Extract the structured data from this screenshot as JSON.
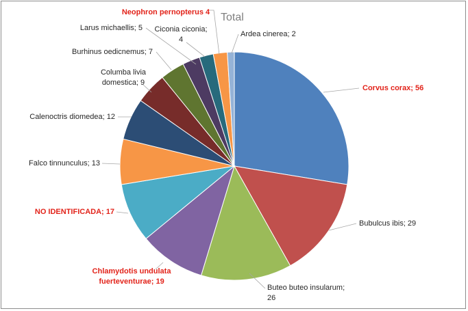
{
  "chart_data": {
    "type": "pie",
    "title": "Total",
    "slices": [
      {
        "label": "Corvus corax; 56",
        "category": "Corvus corax",
        "value": 56,
        "color": "#4f81bd",
        "highlight": true
      },
      {
        "label": "Bubulcus ibis; 29",
        "category": "Bubulcus ibis",
        "value": 29,
        "color": "#c0504d",
        "highlight": false
      },
      {
        "label": "Buteo buteo insularum; 26",
        "category": "Buteo buteo insularum",
        "value": 26,
        "color": "#9bbb59",
        "highlight": false
      },
      {
        "label": "Chlamydotis undulata fuerteventurae; 19",
        "category": "Chlamydotis undulata fuerteventurae",
        "value": 19,
        "color": "#8064a2",
        "highlight": true
      },
      {
        "label": "NO IDENTIFICADA; 17",
        "category": "NO IDENTIFICADA",
        "value": 17,
        "color": "#4bacc6",
        "highlight": true
      },
      {
        "label": "Falco tinnunculus; 13",
        "category": "Falco tinnunculus",
        "value": 13,
        "color": "#f79646",
        "highlight": false
      },
      {
        "label": "Calenoctris diomedea; 12",
        "category": "Calenoctris diomedea",
        "value": 12,
        "color": "#2c4d75",
        "highlight": false
      },
      {
        "label": "Columba livia domestica; 9",
        "category": "Columba livia domestica",
        "value": 9,
        "color": "#772c2a",
        "highlight": false
      },
      {
        "label": "Burhinus oedicnemus; 7",
        "category": "Burhinus oedicnemus",
        "value": 7,
        "color": "#5f7530",
        "highlight": false
      },
      {
        "label": "Larus michaellis; 5",
        "category": "Larus michaellis",
        "value": 5,
        "color": "#4d3b62",
        "highlight": false
      },
      {
        "label": "Ciconia ciconia; 4",
        "category": "Ciconia ciconia",
        "value": 4,
        "color": "#276a7c",
        "highlight": false
      },
      {
        "label": "Neophron pernopterus 4",
        "category": "Neophron pernopterus",
        "value": 4,
        "color": "#f79646",
        "highlight": true
      },
      {
        "label": "Ardea cinerea; 2",
        "category": "Ardea cinerea",
        "value": 2,
        "color": "#95b3d7",
        "highlight": false
      }
    ],
    "start_angle": "12 o'clock",
    "direction": "clockwise",
    "legend": "none"
  }
}
